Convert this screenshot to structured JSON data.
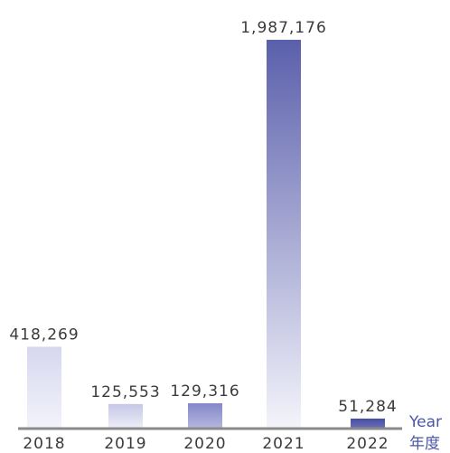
{
  "chart_data": {
    "type": "bar",
    "categories": [
      "2018",
      "2019",
      "2020",
      "2021",
      "2022"
    ],
    "values": [
      418269,
      125553,
      129316,
      1987176,
      51284
    ],
    "value_labels": [
      "418,269",
      "125,553",
      "129,316",
      "1,987,176",
      "51,284"
    ],
    "xlabel": "Year",
    "xlabel_alt": "年度",
    "ylim": [
      0,
      1987176
    ],
    "grid": false,
    "colors": {
      "bar_2018_top": "#d6d7ee",
      "bar_2018_bottom": "#f3f3fb",
      "bar_2019_top": "#c5c7e7",
      "bar_2019_bottom": "#eeeef8",
      "bar_2020_top": "#8387c8",
      "bar_2020_bottom": "#b6b8df",
      "bar_2021_top": "#5a5fab",
      "bar_2021_bottom": "#f4f4fb",
      "bar_2022_top": "#474ea0",
      "bar_2022_bottom": "#6b70b8",
      "axis": "#8a8a8a",
      "axis_title": "#4a56a6"
    }
  }
}
